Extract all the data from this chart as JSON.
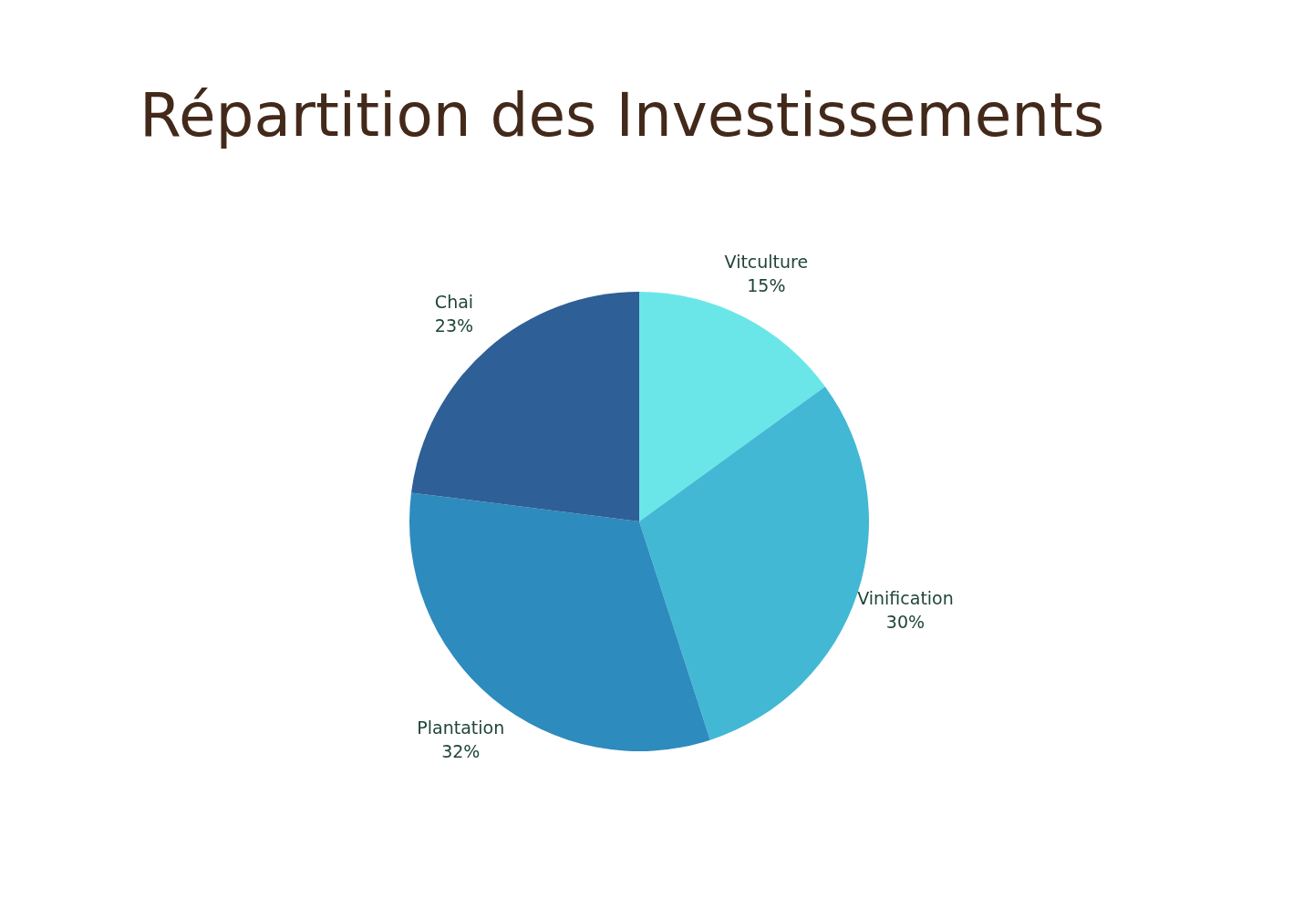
{
  "chart_data": {
    "type": "pie",
    "title": "Répartition des Investissements",
    "categories": [
      "Vitculture",
      "Vinification",
      "Plantation",
      "Chai"
    ],
    "values": [
      15,
      30,
      32,
      23
    ],
    "value_labels": [
      "15%",
      "30%",
      "32%",
      "23%"
    ],
    "colors": [
      "#6ae6e8",
      "#42b8d4",
      "#2d8bbd",
      "#2e5f96"
    ],
    "legend": false
  }
}
